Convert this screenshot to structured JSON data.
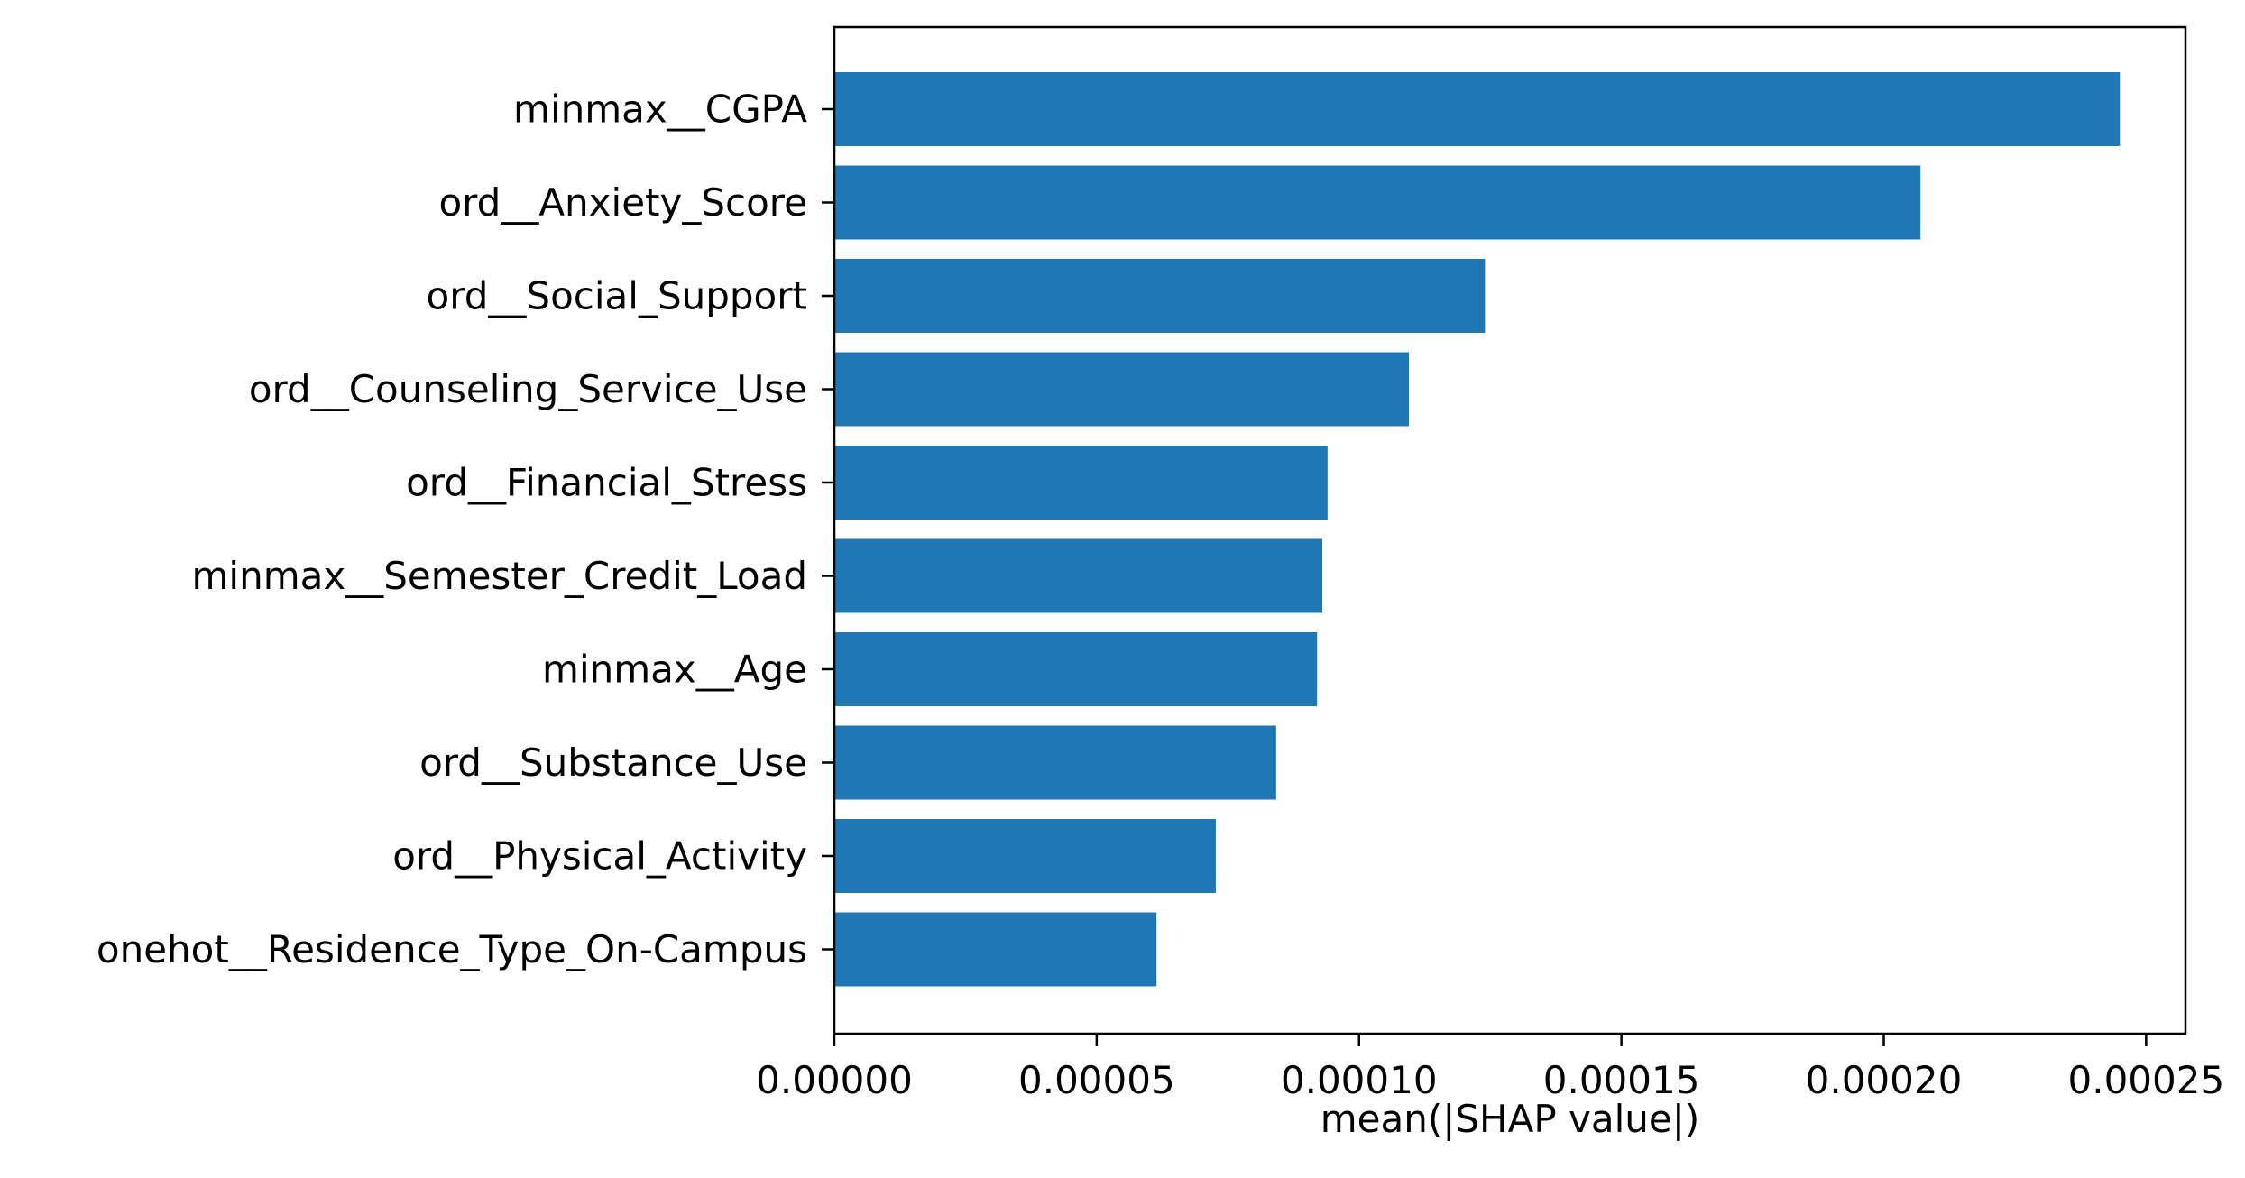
{
  "chart_data": {
    "type": "bar",
    "orientation": "horizontal",
    "title": "",
    "xlabel": "mean(|SHAP value|)",
    "ylabel": "",
    "xlim": [
      0,
      0.0002575
    ],
    "xticks": [
      0,
      5e-05,
      0.0001,
      0.00015,
      0.0002,
      0.00025
    ],
    "xtick_labels": [
      "0.00000",
      "0.00005",
      "0.00010",
      "0.00015",
      "0.00020",
      "0.00025"
    ],
    "categories": [
      "minmax__CGPA",
      "ord__Anxiety_Score",
      "ord__Social_Support",
      "ord__Counseling_Service_Use",
      "ord__Financial_Stress",
      "minmax__Semester_Credit_Load",
      "minmax__Age",
      "ord__Substance_Use",
      "ord__Physical_Activity",
      "onehot__Residence_Type_On-Campus"
    ],
    "values": [
      0.000245,
      0.000207,
      0.000124,
      0.0001095,
      9.4e-05,
      9.3e-05,
      9.2e-05,
      8.42e-05,
      7.27e-05,
      6.14e-05
    ],
    "bar_color": "#1f77b4",
    "grid": false,
    "legend": "none"
  }
}
